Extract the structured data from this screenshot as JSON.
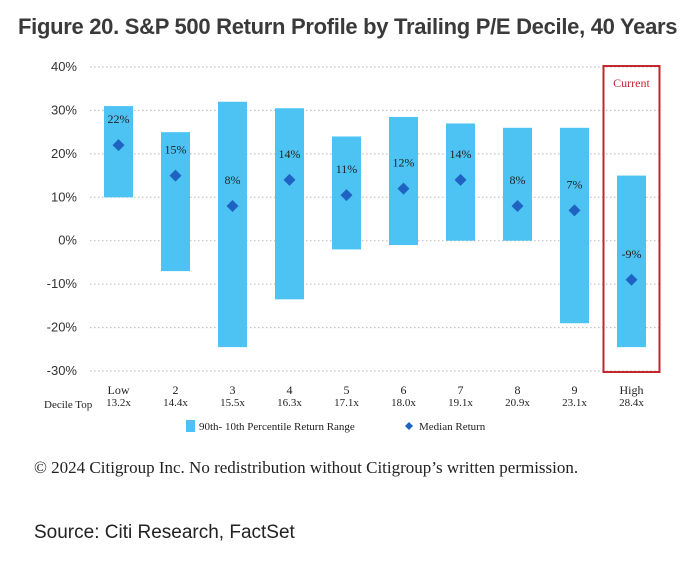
{
  "title": "Figure 20. S&P 500 Return Profile by Trailing P/E Decile, 40 Years",
  "copyright": "© 2024 Citigroup Inc. No redistribution without Citigroup’s written permission.",
  "source": "Source: Citi Research, FactSet",
  "chart_data": {
    "type": "bar",
    "title": "Figure 20. S&P 500 Return Profile by Trailing P/E Decile, 40 Years",
    "xlabel": "Decile Top",
    "ylabel": "",
    "ylim": [
      -30,
      40
    ],
    "yticks": [
      "40%",
      "30%",
      "20%",
      "10%",
      "0%",
      "-10%",
      "-20%",
      "-30%"
    ],
    "ytick_values": [
      40,
      30,
      20,
      10,
      0,
      -10,
      -20,
      -30
    ],
    "categories": [
      "Low",
      "2",
      "3",
      "4",
      "5",
      "6",
      "7",
      "8",
      "9",
      "High"
    ],
    "decile_tops": [
      "13.2x",
      "14.4x",
      "15.5x",
      "16.3x",
      "17.1x",
      "18.0x",
      "19.1x",
      "20.9x",
      "23.1x",
      "28.4x"
    ],
    "series": [
      {
        "name": "90th- 10th Percentile Return Range",
        "color": "#4dc3f3",
        "high": [
          31,
          25,
          32,
          30.5,
          24,
          28.5,
          27,
          26,
          26,
          15
        ],
        "low": [
          10,
          -7,
          -24.5,
          -13.5,
          -2,
          -1,
          0,
          0,
          -19,
          -24.5
        ]
      },
      {
        "name": "Median Return",
        "color": "#1f63c2",
        "values": [
          22,
          15,
          8,
          14,
          10.5,
          12,
          14,
          8,
          7,
          -9
        ],
        "labels": [
          "22%",
          "15%",
          "8%",
          "14%",
          "11%",
          "12%",
          "14%",
          "8%",
          "7%",
          "-9%"
        ]
      }
    ],
    "highlight": {
      "category": "High",
      "label": "Current",
      "color": "#c0282d"
    },
    "legend": [
      "90th- 10th Percentile Return Range",
      "Median Return"
    ],
    "legend_position": "bottom"
  }
}
